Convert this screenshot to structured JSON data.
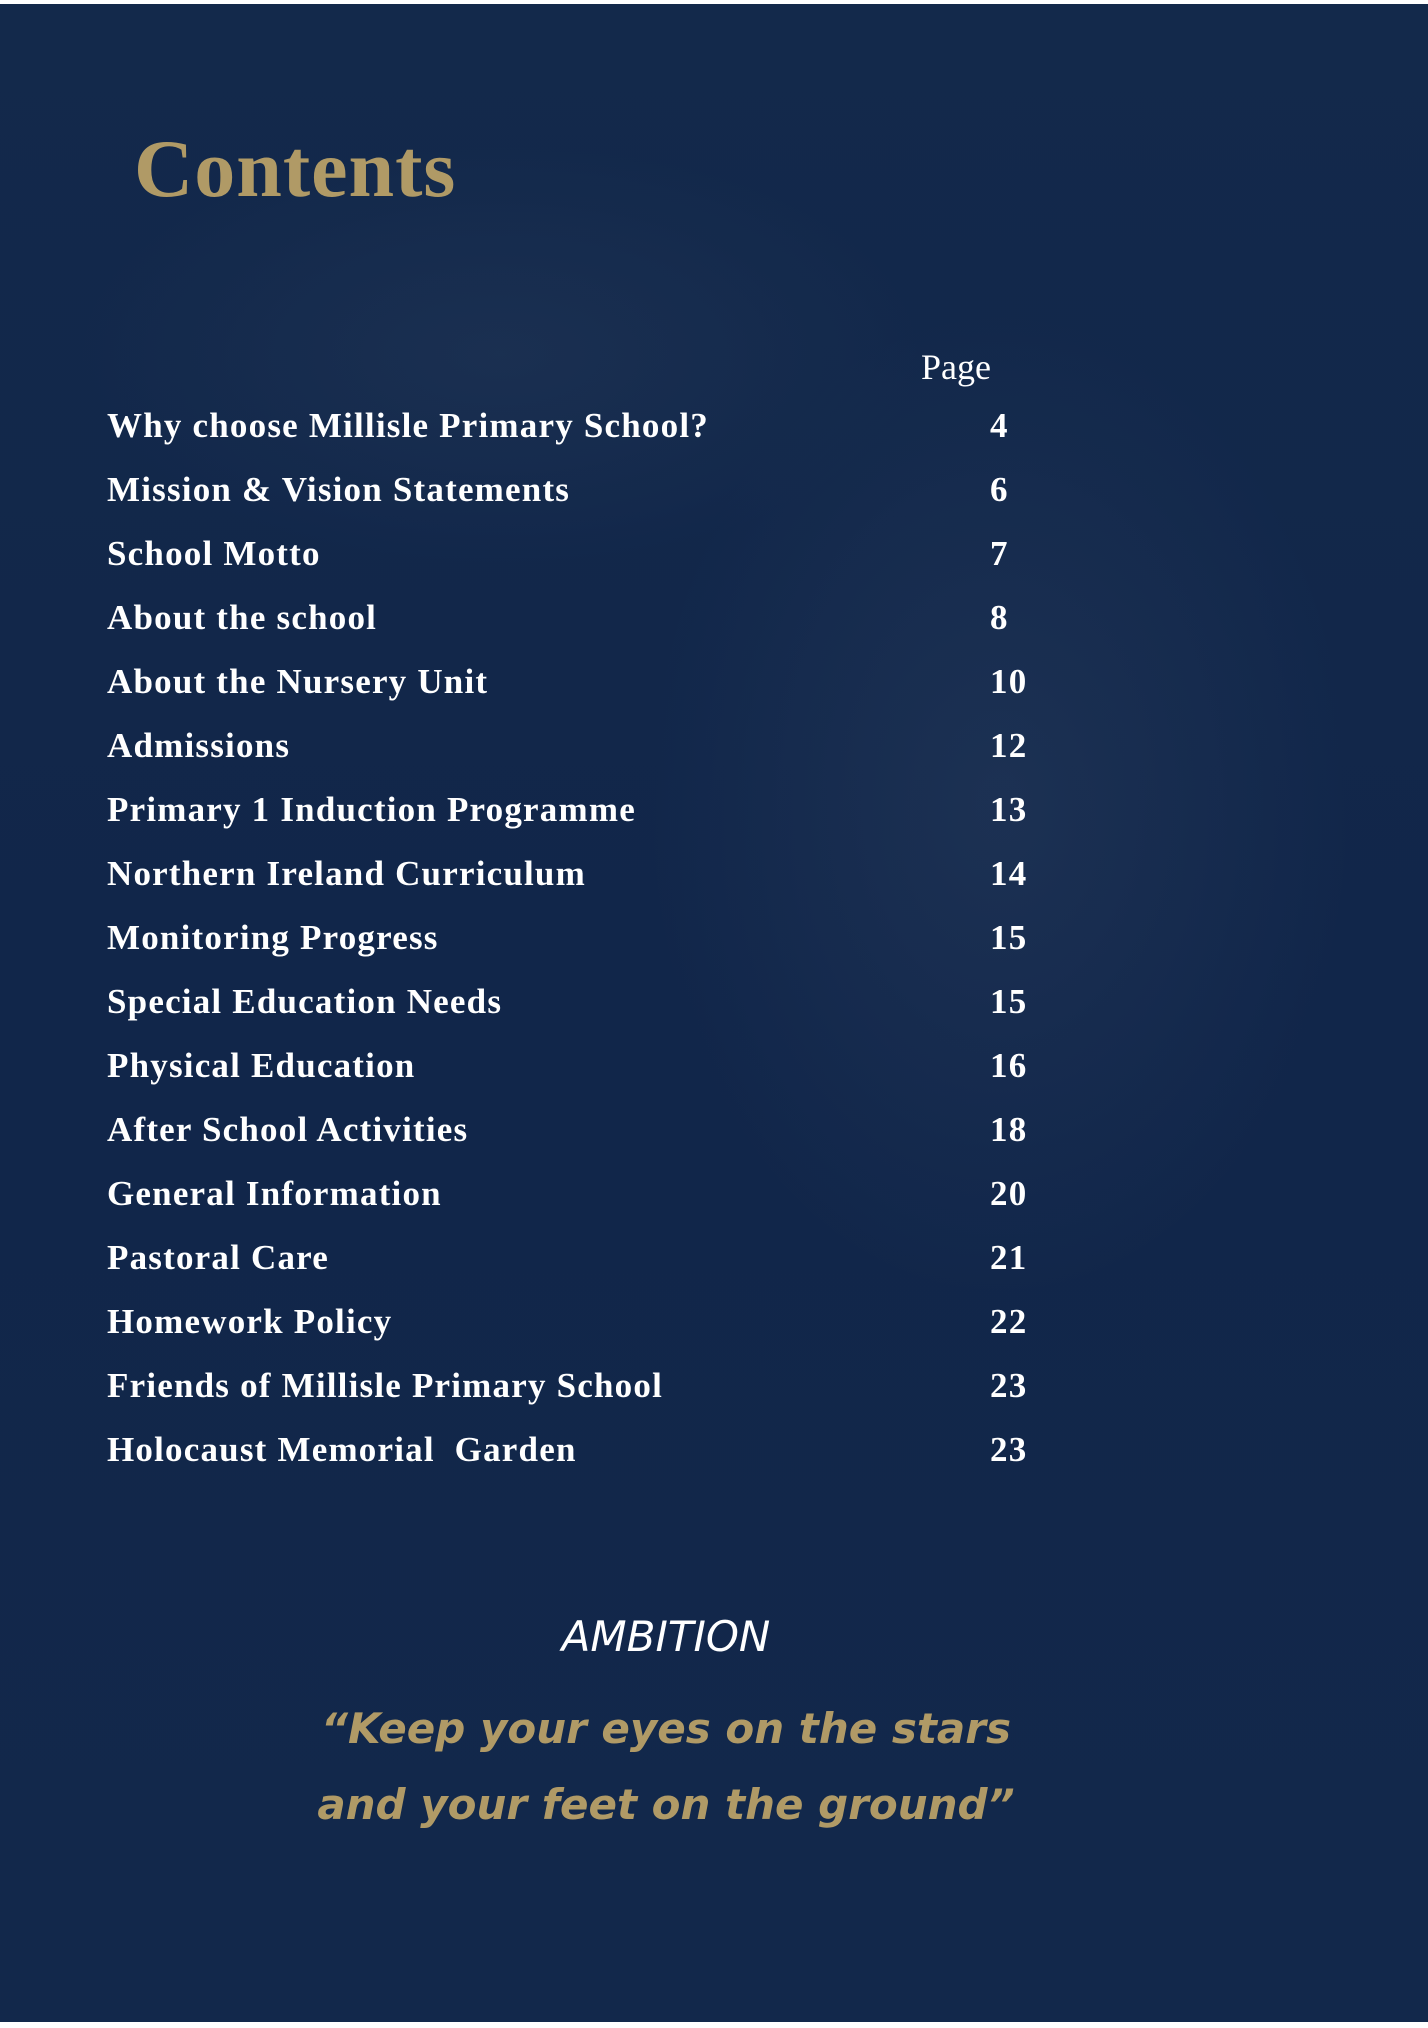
{
  "title": "Contents",
  "page_column_label": "Page",
  "entries": [
    {
      "label": "Why choose Millisle Primary School?",
      "page": "4"
    },
    {
      "label": "Mission & Vision Statements",
      "page": "6"
    },
    {
      "label": "School Motto",
      "page": "7"
    },
    {
      "label": "About the school",
      "page": "8"
    },
    {
      "label": "About the Nursery Unit",
      "page": "10"
    },
    {
      "label": "Admissions",
      "page": "12"
    },
    {
      "label": "Primary 1 Induction Programme",
      "page": "13"
    },
    {
      "label": "Northern Ireland Curriculum",
      "page": "14"
    },
    {
      "label": "Monitoring Progress",
      "page": "15"
    },
    {
      "label": "Special Education Needs",
      "page": "15"
    },
    {
      "label": "Physical Education",
      "page": "16"
    },
    {
      "label": "After School Activities",
      "page": "18"
    },
    {
      "label": "General Information",
      "page": "20"
    },
    {
      "label": "Pastoral Care",
      "page": "21"
    },
    {
      "label": "Homework Policy",
      "page": "22"
    },
    {
      "label": "Friends of Millisle Primary School",
      "page": "23"
    },
    {
      "label": "Holocaust Memorial  Garden",
      "page": "23"
    }
  ],
  "ambition": {
    "heading": "AMBITION",
    "quote_line1": "“Keep your eyes on the stars",
    "quote_line2": "and your feet on the ground”"
  },
  "colors": {
    "background": "#12284b",
    "accent_gold": "#b09a66",
    "text": "#ffffff"
  }
}
